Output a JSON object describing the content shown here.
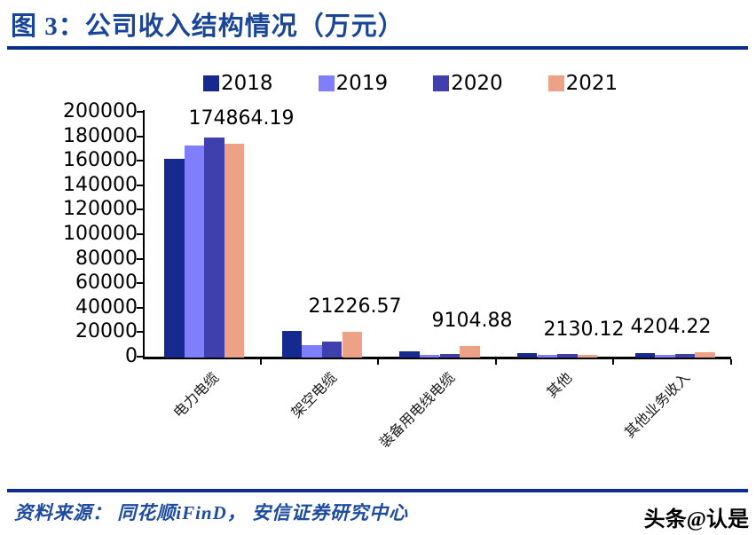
{
  "header": {
    "title": "图 3：公司收入结构情况（万元）"
  },
  "chart_data": {
    "type": "bar",
    "title": "公司收入结构情况（万元）",
    "categories": [
      "电力电缆",
      "架空电缆",
      "装备用电线电缆",
      "其他",
      "其他业务收入"
    ],
    "series": [
      {
        "name": "2018",
        "color": "#16298F",
        "values": [
          162500,
          21700,
          5000,
          3800,
          3700
        ]
      },
      {
        "name": "2019",
        "color": "#7F7FFB",
        "values": [
          173500,
          10000,
          2300,
          2000,
          1900
        ]
      },
      {
        "name": "2020",
        "color": "#3F3FAE",
        "values": [
          179500,
          13000,
          3200,
          2700,
          3100
        ]
      },
      {
        "name": "2021",
        "color": "#EDA287",
        "values": [
          174864.19,
          21226.57,
          9104.88,
          2130.12,
          4204.22
        ]
      }
    ],
    "labeled_series": "2021",
    "value_labels": [
      "174864.19",
      "21226.57",
      "9104.88",
      "2130.12",
      "4204.22"
    ],
    "ylim": [
      0,
      200000
    ],
    "ytick_step": 20000,
    "ytick_labels": [
      "0",
      "20000",
      "40000",
      "60000",
      "80000",
      "100000",
      "120000",
      "140000",
      "160000",
      "180000",
      "200000"
    ],
    "legend_position": "top",
    "grid": "off"
  },
  "footer": {
    "source": "资料来源：  同花顺iFinD，  安信证券研究中心",
    "watermark": "头条@认是"
  },
  "colors": {
    "accent_blue": "#1A4697",
    "divider_navy": "#0B2E8C",
    "axis_black": "#000000"
  }
}
